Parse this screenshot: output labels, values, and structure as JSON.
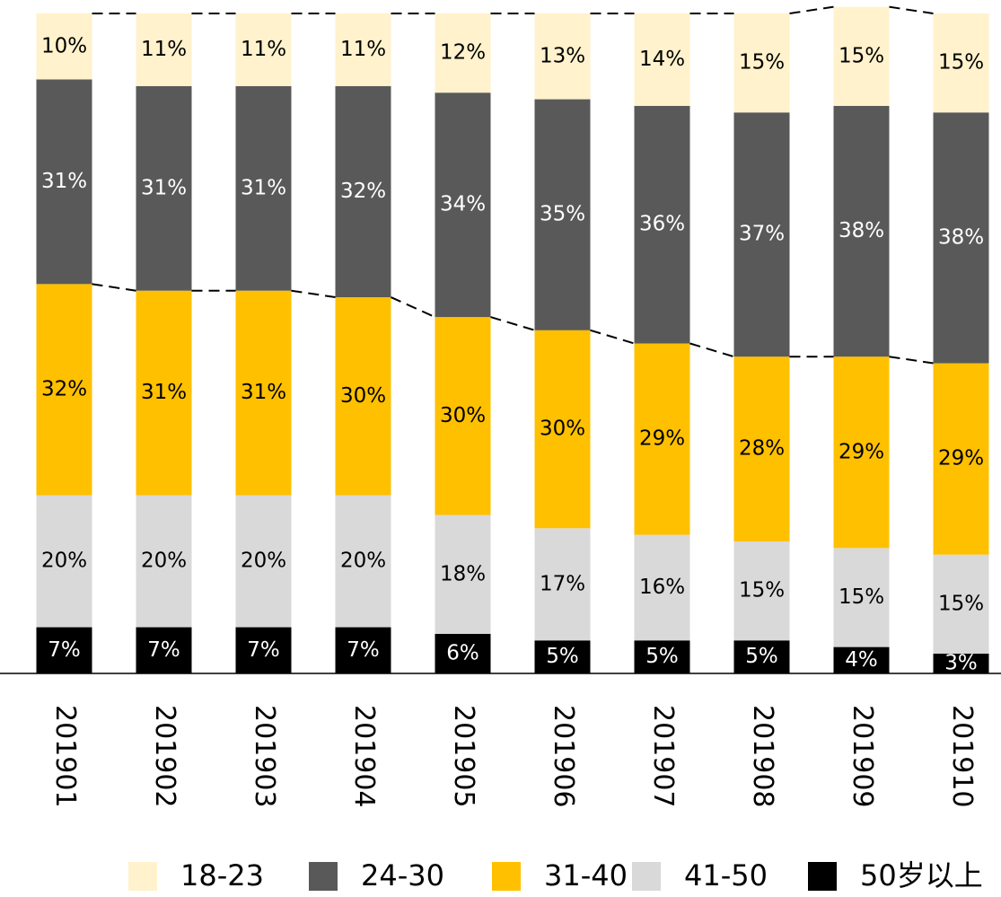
{
  "chart_data": {
    "type": "stacked_bar",
    "categories": [
      "201901",
      "201902",
      "201903",
      "201904",
      "201905",
      "201906",
      "201907",
      "201908",
      "201909",
      "201910"
    ],
    "series": [
      {
        "name": "50岁以上",
        "color": "#000000",
        "label_color": "#ffffff",
        "values": [
          7,
          7,
          7,
          7,
          6,
          5,
          5,
          5,
          4,
          3
        ],
        "value_labels": [
          "7%",
          "7%",
          "7%",
          "7%",
          "6%",
          "5%",
          "5%",
          "5%",
          "4%",
          "3%"
        ]
      },
      {
        "name": "41-50",
        "color": "#d9d9d9",
        "label_color": "#000000",
        "values": [
          20,
          20,
          20,
          20,
          18,
          17,
          16,
          15,
          15,
          15
        ],
        "value_labels": [
          "20%",
          "20%",
          "20%",
          "20%",
          "18%",
          "17%",
          "16%",
          "15%",
          "15%",
          "15%"
        ]
      },
      {
        "name": "31-40",
        "color": "#ffc000",
        "label_color": "#000000",
        "values": [
          32,
          31,
          31,
          30,
          30,
          30,
          29,
          28,
          29,
          29
        ],
        "value_labels": [
          "32%",
          "31%",
          "31%",
          "30%",
          "30%",
          "30%",
          "29%",
          "28%",
          "29%",
          "29%"
        ]
      },
      {
        "name": "24-30",
        "color": "#595959",
        "label_color": "#ffffff",
        "values": [
          31,
          31,
          31,
          32,
          34,
          35,
          36,
          37,
          38,
          38
        ],
        "value_labels": [
          "31%",
          "31%",
          "31%",
          "32%",
          "34%",
          "35%",
          "36%",
          "37%",
          "38%",
          "38%"
        ]
      },
      {
        "name": "18-23",
        "color": "#fff2cc",
        "label_color": "#000000",
        "values": [
          10,
          11,
          11,
          11,
          12,
          13,
          14,
          15,
          15,
          15
        ],
        "value_labels": [
          "10%",
          "11%",
          "11%",
          "11%",
          "12%",
          "13%",
          "14%",
          "15%",
          "15%",
          "15%"
        ]
      }
    ],
    "ylim": [
      0,
      100
    ]
  }
}
